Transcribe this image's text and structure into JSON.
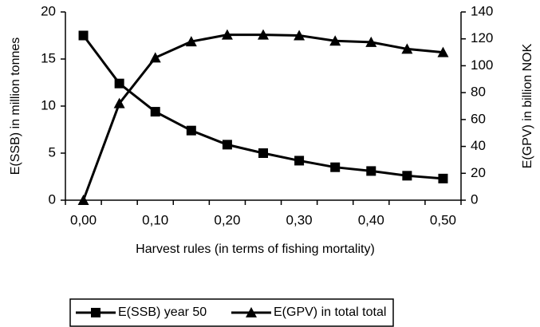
{
  "chart_data": {
    "type": "line",
    "categories": [
      "0,00",
      null,
      "0,10",
      null,
      "0,20",
      null,
      "0,30",
      null,
      "0,40",
      null,
      "0,50"
    ],
    "series": [
      {
        "name": "E(SSB) year 50",
        "color": "#000000",
        "marker": "square",
        "values": [
          17.5,
          12.4,
          9.4,
          7.4,
          5.9,
          5.0,
          4.2,
          3.5,
          3.1,
          2.6,
          2.3
        ]
      },
      {
        "name": "E(GPV) in total total",
        "color": "#000000",
        "marker": "triangle",
        "axis": "y2",
        "values": [
          0,
          72,
          106,
          118,
          123,
          123,
          122.5,
          118.5,
          117.5,
          112.5,
          110
        ]
      }
    ],
    "xlabel": "Harvest rules (in terms of fishing mortality)",
    "ylabel": "E(SSB) in million tonnes",
    "y2label": "E(GPV) in billion NOK",
    "ylim": [
      0,
      20
    ],
    "yticks": [
      0,
      5,
      10,
      15,
      20
    ],
    "y2lim": [
      0,
      140
    ],
    "y2ticks": [
      0,
      20,
      40,
      60,
      80,
      100,
      120,
      140
    ],
    "legend": "bottom"
  }
}
